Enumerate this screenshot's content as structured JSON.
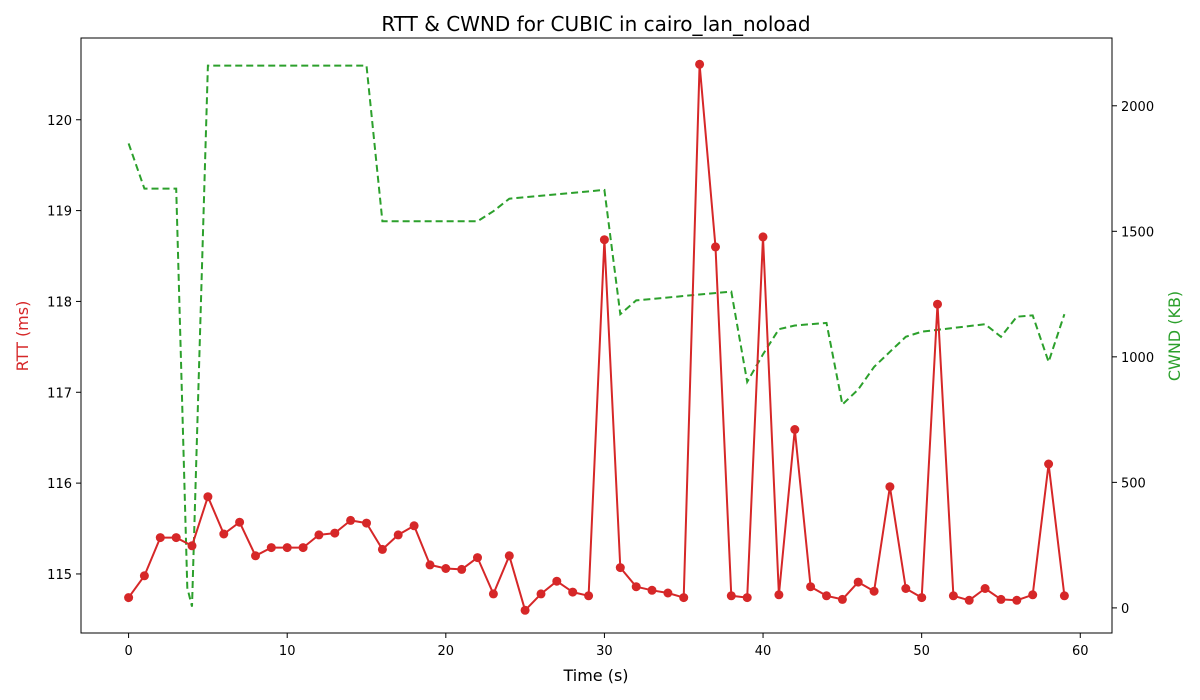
{
  "chart_data": {
    "type": "line",
    "title": "RTT & CWND for CUBIC in cairo_lan_noload",
    "xlabel": "Time (s)",
    "ylabel_left": "RTT (ms)",
    "ylabel_right": "CWND (KB)",
    "xlim": [
      -3,
      62
    ],
    "ylim_left": [
      114.35,
      120.9
    ],
    "ylim_right": [
      -100,
      2270
    ],
    "x_ticks": [
      0,
      10,
      20,
      30,
      40,
      50,
      60
    ],
    "y_left_ticks": [
      115,
      116,
      117,
      118,
      119,
      120
    ],
    "y_right_ticks": [
      0,
      500,
      1000,
      1500,
      2000
    ],
    "colors": {
      "rtt": "#d62728",
      "cwnd": "#2ca02c"
    },
    "grid": false,
    "series": [
      {
        "name": "RTT (ms)",
        "axis": "left",
        "style": "solid-markers",
        "x": [
          0,
          1,
          2,
          3,
          4,
          5,
          6,
          7,
          8,
          9,
          10,
          11,
          12,
          13,
          14,
          15,
          16,
          17,
          18,
          19,
          20,
          21,
          22,
          23,
          24,
          25,
          26,
          27,
          28,
          29,
          30,
          31,
          32,
          33,
          34,
          35,
          36,
          37,
          38,
          39,
          40,
          41,
          42,
          43,
          44,
          45,
          46,
          47,
          48,
          49,
          50,
          51,
          52,
          53,
          54,
          55,
          56,
          57,
          58,
          59
        ],
        "values": [
          114.74,
          114.98,
          115.4,
          115.4,
          115.31,
          115.85,
          115.44,
          115.57,
          115.2,
          115.29,
          115.29,
          115.29,
          115.43,
          115.45,
          115.59,
          115.56,
          115.27,
          115.43,
          115.53,
          115.1,
          115.06,
          115.05,
          115.18,
          114.78,
          115.2,
          114.6,
          114.78,
          114.92,
          114.8,
          114.76,
          118.68,
          115.07,
          114.86,
          114.82,
          114.79,
          114.74,
          120.61,
          118.6,
          114.76,
          114.74,
          118.71,
          114.77,
          116.59,
          114.86,
          114.76,
          114.72,
          114.91,
          114.81,
          115.96,
          114.84,
          114.74,
          117.97,
          114.76,
          114.71,
          114.84,
          114.72,
          114.71,
          114.77,
          116.21,
          114.76
        ]
      },
      {
        "name": "CWND (KB)",
        "axis": "right",
        "style": "dashed",
        "x": [
          0,
          1,
          3,
          3.7,
          4,
          5,
          15,
          16,
          22,
          23,
          24,
          30,
          31,
          32,
          38,
          39,
          40,
          41,
          42,
          44,
          45,
          46,
          47,
          48,
          49,
          50,
          54,
          55,
          56,
          57,
          58,
          59
        ],
        "values": [
          1850,
          1670,
          1670,
          80,
          5,
          2160,
          2160,
          1540,
          1540,
          1580,
          1630,
          1665,
          1170,
          1225,
          1260,
          900,
          1010,
          1110,
          1125,
          1135,
          810,
          870,
          960,
          1020,
          1080,
          1100,
          1130,
          1080,
          1160,
          1165,
          980,
          1170
        ]
      }
    ]
  }
}
